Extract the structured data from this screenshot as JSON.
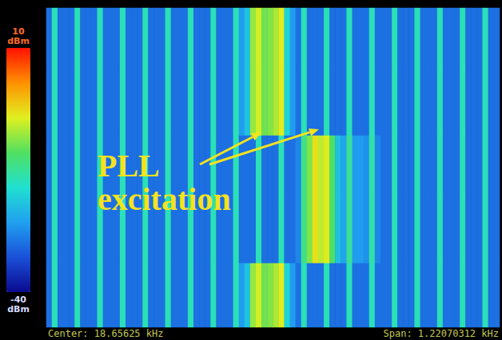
{
  "chart_data": {
    "type": "heatmap",
    "tick_labels": false,
    "cells": [
      [
        -30,
        -17,
        -30,
        -30,
        -30,
        -17,
        -30,
        -30,
        -30,
        -17,
        -30,
        -30,
        -30,
        -17,
        -30,
        -30,
        -30,
        -17,
        -30,
        -30,
        -30,
        -17,
        -30,
        -30,
        -30,
        -17,
        -30,
        -30,
        -30,
        -17,
        -30,
        -30,
        -30,
        -17,
        -26,
        -22,
        -8,
        -5,
        -10,
        -9,
        -7,
        -4,
        -20,
        -26,
        -30,
        -17,
        -30,
        -30,
        -30,
        -17,
        -30,
        -30,
        -30,
        -17,
        -30,
        -30,
        -30,
        -17,
        -30,
        -30,
        -30,
        -17,
        -30,
        -30,
        -30,
        -17,
        -30,
        -30,
        -30,
        -17,
        -30,
        -30,
        -30,
        -17,
        -30,
        -30,
        -30,
        -17,
        -30,
        -30
      ],
      [
        -30,
        -17,
        -30,
        -30,
        -30,
        -17,
        -30,
        -30,
        -30,
        -17,
        -30,
        -30,
        -30,
        -17,
        -30,
        -30,
        -30,
        -17,
        -30,
        -30,
        -30,
        -17,
        -30,
        -30,
        -30,
        -17,
        -30,
        -30,
        -30,
        -17,
        -30,
        -30,
        -30,
        -17,
        -26,
        -22,
        -8,
        -5,
        -10,
        -9,
        -7,
        -4,
        -20,
        -26,
        -30,
        -17,
        -30,
        -30,
        -30,
        -17,
        -30,
        -30,
        -30,
        -17,
        -30,
        -30,
        -30,
        -17,
        -30,
        -30,
        -30,
        -17,
        -30,
        -30,
        -30,
        -17,
        -30,
        -30,
        -30,
        -17,
        -30,
        -30,
        -30,
        -17,
        -30,
        -30,
        -30,
        -17,
        -30,
        -30
      ],
      [
        -30,
        -17,
        -30,
        -30,
        -30,
        -17,
        -30,
        -30,
        -30,
        -17,
        -30,
        -30,
        -30,
        -17,
        -30,
        -30,
        -30,
        -17,
        -30,
        -30,
        -30,
        -17,
        -30,
        -30,
        -30,
        -17,
        -30,
        -30,
        -30,
        -17,
        -30,
        -30,
        -30,
        -17,
        -30,
        -30,
        -30,
        -17,
        -30,
        -30,
        -30,
        -17,
        -30,
        -30,
        -28,
        -14,
        -9,
        -3,
        -6,
        -4,
        -12,
        -22,
        -25,
        -15,
        -26,
        -26,
        -27,
        -16,
        -28,
        -30,
        -30,
        -17,
        -30,
        -30,
        -30,
        -17,
        -30,
        -30,
        -30,
        -17,
        -30,
        -30,
        -30,
        -17,
        -30,
        -30,
        -30,
        -17,
        -30,
        -30
      ],
      [
        -30,
        -17,
        -30,
        -30,
        -30,
        -17,
        -30,
        -30,
        -30,
        -17,
        -30,
        -30,
        -30,
        -17,
        -30,
        -30,
        -30,
        -17,
        -30,
        -30,
        -30,
        -17,
        -30,
        -30,
        -30,
        -17,
        -30,
        -30,
        -30,
        -17,
        -30,
        -30,
        -30,
        -17,
        -30,
        -30,
        -30,
        -17,
        -30,
        -30,
        -30,
        -17,
        -30,
        -30,
        -28,
        -14,
        -9,
        -3,
        -6,
        -4,
        -12,
        -22,
        -25,
        -15,
        -26,
        -26,
        -27,
        -16,
        -28,
        -30,
        -30,
        -17,
        -30,
        -30,
        -30,
        -17,
        -30,
        -30,
        -30,
        -17,
        -30,
        -30,
        -30,
        -17,
        -30,
        -30,
        -30,
        -17,
        -30,
        -30
      ],
      [
        -30,
        -17,
        -30,
        -30,
        -30,
        -17,
        -30,
        -30,
        -30,
        -17,
        -30,
        -30,
        -30,
        -17,
        -30,
        -30,
        -30,
        -17,
        -30,
        -30,
        -30,
        -17,
        -30,
        -30,
        -30,
        -17,
        -30,
        -30,
        -30,
        -17,
        -30,
        -30,
        -30,
        -17,
        -26,
        -22,
        -8,
        -5,
        -10,
        -9,
        -7,
        -4,
        -20,
        -26,
        -30,
        -17,
        -30,
        -30,
        -30,
        -17,
        -30,
        -30,
        -30,
        -17,
        -30,
        -30,
        -30,
        -17,
        -30,
        -30,
        -30,
        -17,
        -30,
        -30,
        -30,
        -17,
        -30,
        -30,
        -30,
        -17,
        -30,
        -30,
        -30,
        -17,
        -30,
        -30,
        -30,
        -17,
        -30,
        -30
      ]
    ],
    "colorbar": {
      "range": [
        -40,
        10
      ],
      "ticks": [
        {
          "value": 10,
          "label": "10 dBm"
        },
        {
          "value": -40,
          "label": "-40 dBm"
        }
      ]
    },
    "annotations": [
      {
        "text": "PLL excitation"
      }
    ],
    "footer": {
      "left": "Center: 18.65625 kHz",
      "right": "Span: 1.22070312 kHz"
    }
  }
}
